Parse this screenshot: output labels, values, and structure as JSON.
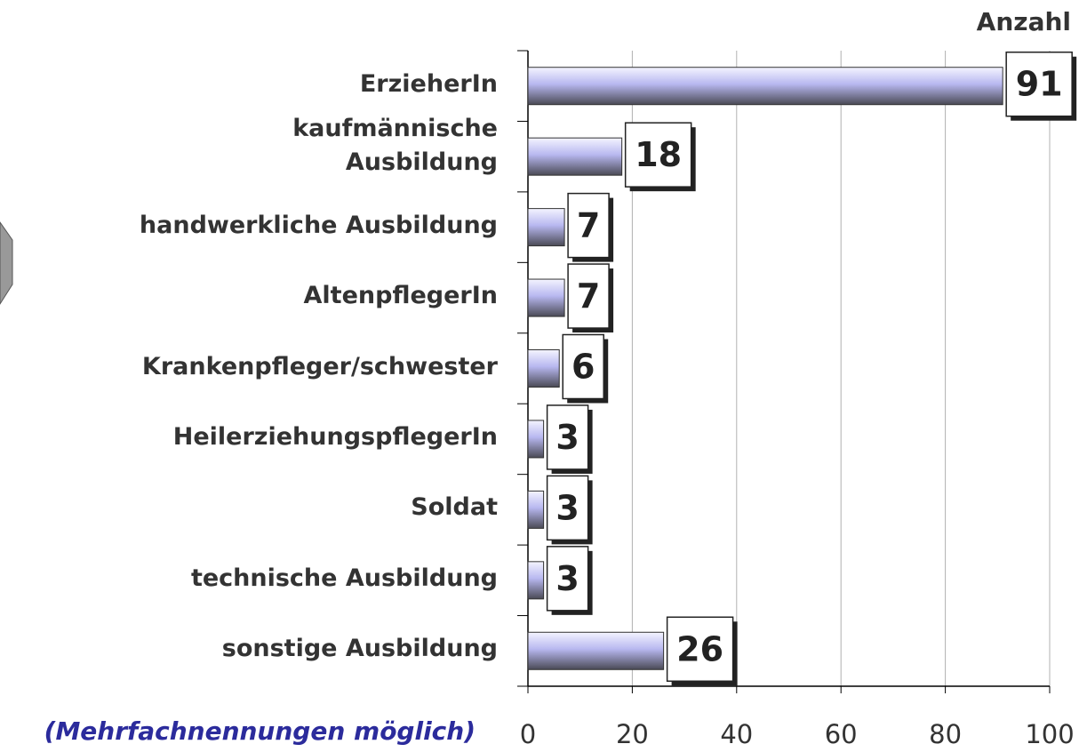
{
  "chart_data": {
    "type": "bar",
    "orientation": "horizontal",
    "title": "Anzahl",
    "note": "(Mehrfachnennungen möglich)",
    "categories": [
      "ErzieherIn",
      "kaufmännische\nAusbildung",
      "handwerkliche Ausbildung",
      "AltenpflegerIn",
      "Krankenpfleger/schwester",
      "HeilerziehungspflegerIn",
      "Soldat",
      "technische Ausbildung",
      "sonstige Ausbildung"
    ],
    "values": [
      91,
      18,
      7,
      7,
      6,
      3,
      3,
      3,
      26
    ],
    "color": "#b8b8f0",
    "xlim": [
      0,
      100
    ],
    "xticks": [
      0,
      20,
      40,
      60,
      80,
      100
    ],
    "grid": true
  }
}
